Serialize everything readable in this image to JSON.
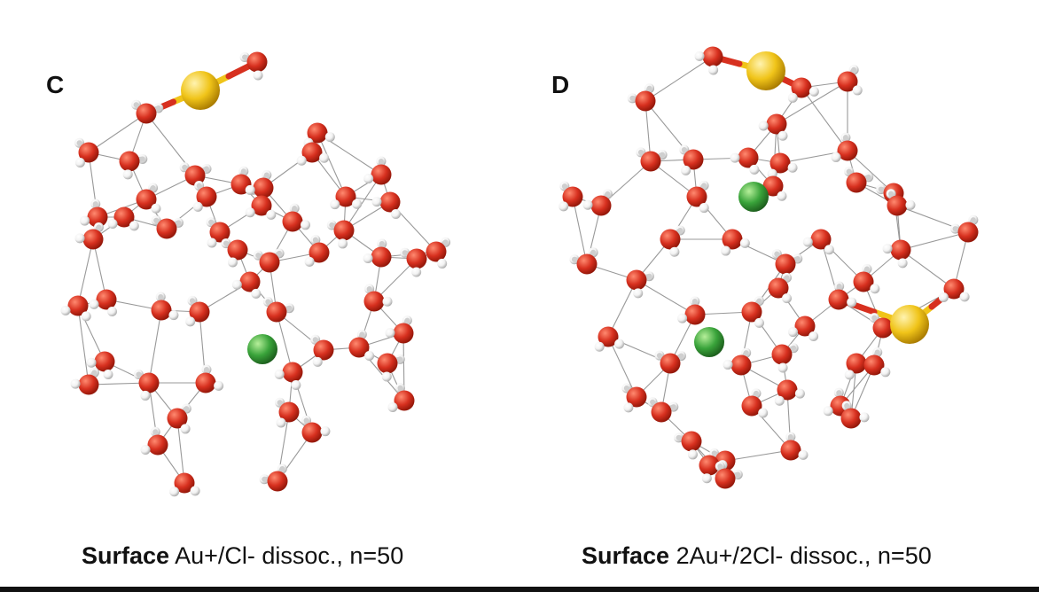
{
  "figure": {
    "panels": [
      {
        "label": "C",
        "caption_bold": "Surface",
        "caption_rest": " Au+/Cl- dissoc., n=50"
      },
      {
        "label": "D",
        "caption_bold": "Surface",
        "caption_rest": " 2Au+/2Cl- dissoc., n=50"
      }
    ],
    "colors": {
      "oxygen": "#d7301f",
      "hydrogen": "#f2f2f2",
      "gold": "#f0c419",
      "chloride": "#39a33a",
      "bond": "#999999"
    }
  }
}
